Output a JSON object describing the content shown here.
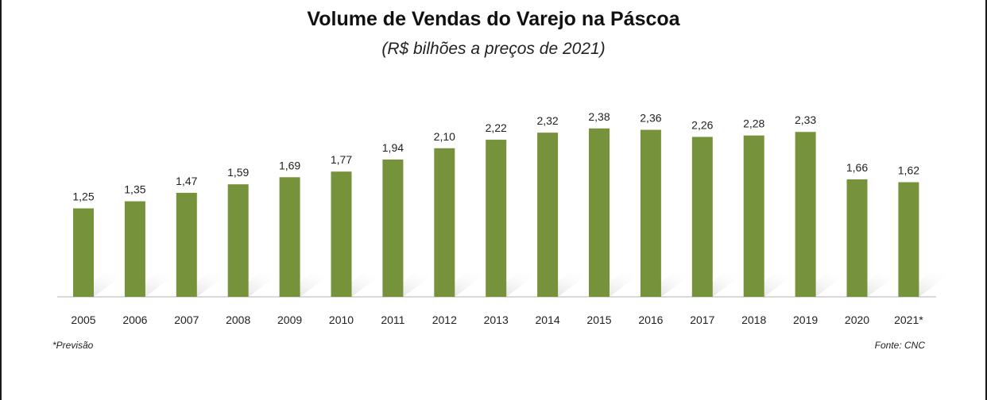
{
  "chart_data": {
    "type": "bar",
    "title": "Volume de Vendas do Varejo na Páscoa",
    "subtitle": "(R$ bilhões a preços de 2021)",
    "categories": [
      "2005",
      "2006",
      "2007",
      "2008",
      "2009",
      "2010",
      "2011",
      "2012",
      "2013",
      "2014",
      "2015",
      "2016",
      "2017",
      "2018",
      "2019",
      "2020",
      "2021*"
    ],
    "values": [
      1.25,
      1.35,
      1.47,
      1.59,
      1.69,
      1.77,
      1.94,
      2.1,
      2.22,
      2.32,
      2.38,
      2.36,
      2.26,
      2.28,
      2.33,
      1.66,
      1.62
    ],
    "data_labels": [
      "1,25",
      "1,35",
      "1,47",
      "1,59",
      "1,69",
      "1,77",
      "1,94",
      "2,10",
      "2,22",
      "2,32",
      "2,38",
      "2,36",
      "2,26",
      "2,28",
      "2,33",
      "1,66",
      "1,62"
    ],
    "ylim": [
      0,
      2.4
    ],
    "grid": false,
    "legend": "none",
    "bar_color": "#76933c",
    "note": "*Previsão",
    "source": "Fonte: CNC"
  }
}
